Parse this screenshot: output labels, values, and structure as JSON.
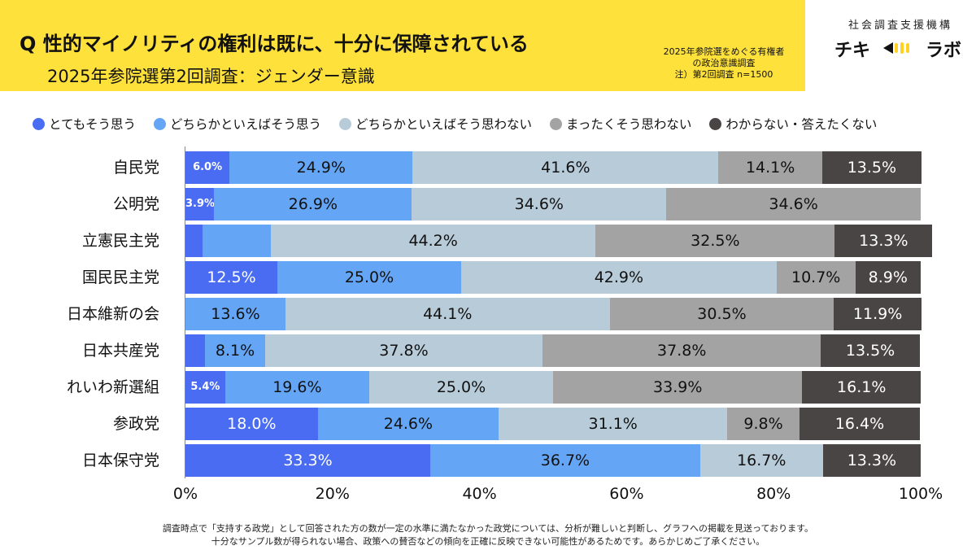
{
  "header": {
    "title": "Q 性的マイノリティの権利は既に、十分に保障されている",
    "subtitle": "2025年参院選第2回調査：ジェンダー意識",
    "survey_note": [
      "2025年参院選をめぐる有権者",
      "の政治意識調査",
      "注）第2回調査 n=1500"
    ]
  },
  "brand": {
    "org": "社会調査支援機構",
    "logo_left": "チキ",
    "logo_right": "ラボ"
  },
  "footnotes": [
    "調査時点で「支持する政党」として回答された方の数が一定の水準に満たなかった政党については、分析が難しいと判断し、グラフへの掲載を見送っております。",
    "十分なサンプル数が得られない場合、政策への賛否などの傾向を正確に反映できない可能性があるためです。あらかじめご了承ください。"
  ],
  "colors": {
    "header_band": "#FFE13B",
    "series": [
      "#4A6CF2",
      "#64A6F5",
      "#B8CBD9",
      "#A3A3A3",
      "#4A4545"
    ],
    "text_on_series": [
      "#ffffff",
      "#111111",
      "#111111",
      "#111111",
      "#ffffff"
    ]
  },
  "chart_data": {
    "type": "bar",
    "orientation": "horizontal",
    "stacked": true,
    "normalized": true,
    "categories": [
      "自民党",
      "公明党",
      "立憲民主党",
      "国民民主党",
      "日本維新の会",
      "日本共産党",
      "れいわ新選組",
      "参政党",
      "日本保守党"
    ],
    "series": [
      {
        "name": "とてもそう思う",
        "values": [
          6.0,
          3.9,
          2.3,
          12.5,
          0.0,
          2.7,
          5.4,
          18.0,
          33.3
        ],
        "labels": [
          "6.0%",
          "3.9%",
          "",
          "12.5%",
          "",
          "",
          "5.4%",
          "18.0%",
          "33.3%"
        ]
      },
      {
        "name": "どちらかといえばそう思う",
        "values": [
          24.9,
          26.9,
          9.3,
          25.0,
          13.6,
          8.1,
          19.6,
          24.6,
          36.7
        ],
        "labels": [
          "24.9%",
          "26.9%",
          "",
          "25.0%",
          "13.6%",
          "8.1%",
          "19.6%",
          "24.6%",
          "36.7%"
        ]
      },
      {
        "name": "どちらかといえばそう思わない",
        "values": [
          41.6,
          34.6,
          44.2,
          42.9,
          44.1,
          37.8,
          25.0,
          31.1,
          16.7
        ],
        "labels": [
          "41.6%",
          "34.6%",
          "44.2%",
          "42.9%",
          "44.1%",
          "37.8%",
          "25.0%",
          "31.1%",
          "16.7%"
        ]
      },
      {
        "name": "まったくそう思わない",
        "values": [
          14.1,
          34.6,
          32.5,
          10.7,
          30.5,
          37.8,
          33.9,
          9.8,
          0.0
        ],
        "labels": [
          "14.1%",
          "34.6%",
          "32.5%",
          "10.7%",
          "30.5%",
          "37.8%",
          "33.9%",
          "9.8%",
          ""
        ]
      },
      {
        "name": "わからない・答えたくない",
        "values": [
          13.5,
          0.0,
          13.3,
          8.9,
          11.9,
          13.5,
          16.1,
          16.4,
          13.3
        ],
        "labels": [
          "13.5%",
          "",
          "13.3%",
          "8.9%",
          "11.9%",
          "13.5%",
          "16.1%",
          "16.4%",
          "13.3%"
        ]
      }
    ],
    "xlim": [
      0,
      100
    ],
    "xticks": [
      "0%",
      "20%",
      "40%",
      "60%",
      "80%",
      "100%"
    ],
    "legend_position": "top",
    "grid": false
  }
}
